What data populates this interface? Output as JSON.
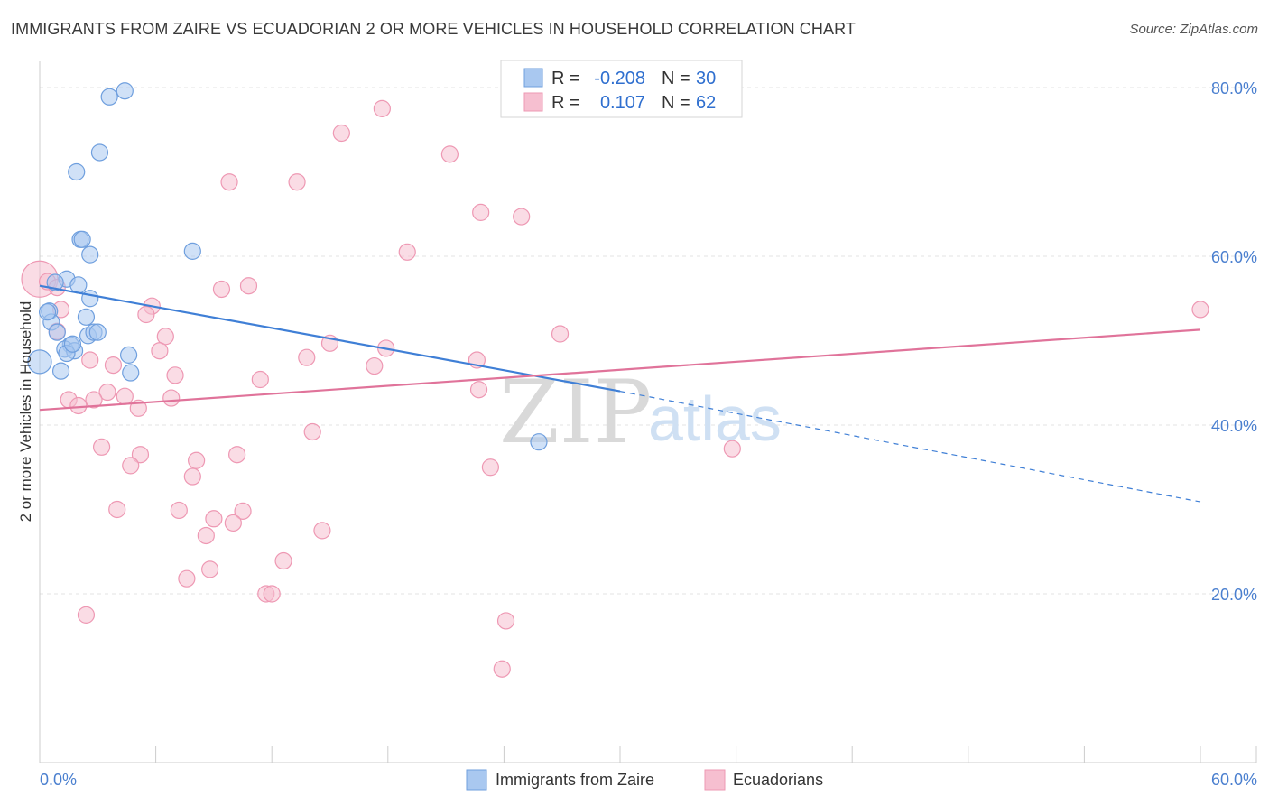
{
  "title": "IMMIGRANTS FROM ZAIRE VS ECUADORIAN 2 OR MORE VEHICLES IN HOUSEHOLD CORRELATION CHART",
  "source": "Source: ZipAtlas.com",
  "watermark": {
    "zip": "ZIP",
    "atlas": "atlas"
  },
  "stats": [
    {
      "r_label": "R =",
      "r_value": "-0.208",
      "n_label": "N =",
      "n_value": "30"
    },
    {
      "r_label": "R =",
      "r_value": "0.107",
      "n_label": "N =",
      "n_value": "62"
    }
  ],
  "colors": {
    "blue_fill": "#a9c8f0",
    "blue_stroke": "#6f9fde",
    "blue_line": "#3f7fd6",
    "pink_fill": "#f6bfd0",
    "pink_stroke": "#ee98b3",
    "pink_line": "#e0739a",
    "tick_color": "#4a7fcf",
    "grid": "#e3e3e3"
  },
  "chart_data": {
    "type": "scatter",
    "title": "IMMIGRANTS FROM ZAIRE VS ECUADORIAN 2 OR MORE VEHICLES IN HOUSEHOLD CORRELATION CHART",
    "xlabel": "",
    "ylabel": "2 or more Vehicles in Household",
    "xlim": [
      0,
      60
    ],
    "ylim": [
      0,
      82
    ],
    "x_ticks": [
      "0.0%",
      "60.0%"
    ],
    "y_ticks": [
      {
        "value": 20,
        "label": "20.0%"
      },
      {
        "value": 40,
        "label": "40.0%"
      },
      {
        "value": 60,
        "label": "60.0%"
      },
      {
        "value": 80,
        "label": "80.0%"
      }
    ],
    "grid": true,
    "legend_position": "bottom-center",
    "series": [
      {
        "name": "Immigrants from Zaire",
        "color": "#a9c8f0",
        "points": [
          [
            3.6,
            78.9
          ],
          [
            4.4,
            79.6
          ],
          [
            3.1,
            72.3
          ],
          [
            1.9,
            70.0
          ],
          [
            2.1,
            62.0
          ],
          [
            2.2,
            62.0
          ],
          [
            2.6,
            60.2
          ],
          [
            7.9,
            60.6
          ],
          [
            1.4,
            57.3
          ],
          [
            0.8,
            56.9
          ],
          [
            2.0,
            56.6
          ],
          [
            2.6,
            55.0
          ],
          [
            0.5,
            53.5
          ],
          [
            0.6,
            52.2
          ],
          [
            2.4,
            52.8
          ],
          [
            0.9,
            51.0
          ],
          [
            2.5,
            50.6
          ],
          [
            2.8,
            51.0
          ],
          [
            3.0,
            51.0
          ],
          [
            1.6,
            49.5
          ],
          [
            1.3,
            49.0
          ],
          [
            1.8,
            48.8
          ],
          [
            1.4,
            48.5
          ],
          [
            4.6,
            48.3
          ],
          [
            0.0,
            47.5
          ],
          [
            1.1,
            46.4
          ],
          [
            4.7,
            46.2
          ],
          [
            25.8,
            38.0
          ],
          [
            0.4,
            53.4
          ],
          [
            1.7,
            49.6
          ]
        ],
        "sizes": [
          9,
          9,
          9,
          9,
          9,
          9,
          9,
          9,
          9,
          9,
          9,
          9,
          9,
          9,
          9,
          9,
          9,
          9,
          9,
          9,
          9,
          9,
          9,
          9,
          13,
          9,
          9,
          9,
          9,
          9
        ],
        "trend": {
          "x0": 0,
          "y0": 56.5,
          "x1": 30,
          "y1": 44.0,
          "dash_to_x": 60,
          "dash_to_y": 30.9
        }
      },
      {
        "name": "Ecuadorians",
        "color": "#f6bfd0",
        "points": [
          [
            0.0,
            57.3
          ],
          [
            0.4,
            57.0
          ],
          [
            1.1,
            53.7
          ],
          [
            5.8,
            54.1
          ],
          [
            9.4,
            56.1
          ],
          [
            10.8,
            56.5
          ],
          [
            5.5,
            53.1
          ],
          [
            0.9,
            51.1
          ],
          [
            6.5,
            50.5
          ],
          [
            26.9,
            50.8
          ],
          [
            15.0,
            49.7
          ],
          [
            17.9,
            49.1
          ],
          [
            6.2,
            48.8
          ],
          [
            13.8,
            48.0
          ],
          [
            22.6,
            47.7
          ],
          [
            2.6,
            47.7
          ],
          [
            3.8,
            47.1
          ],
          [
            17.3,
            47.0
          ],
          [
            7.0,
            45.9
          ],
          [
            11.4,
            45.4
          ],
          [
            22.7,
            44.2
          ],
          [
            3.5,
            43.9
          ],
          [
            4.4,
            43.4
          ],
          [
            6.8,
            43.2
          ],
          [
            1.5,
            43.0
          ],
          [
            2.8,
            43.0
          ],
          [
            2.0,
            42.3
          ],
          [
            5.1,
            42.0
          ],
          [
            14.1,
            39.2
          ],
          [
            3.2,
            37.4
          ],
          [
            5.2,
            36.5
          ],
          [
            10.2,
            36.5
          ],
          [
            8.1,
            35.8
          ],
          [
            4.7,
            35.2
          ],
          [
            23.3,
            35.0
          ],
          [
            7.9,
            33.9
          ],
          [
            4.0,
            30.0
          ],
          [
            7.2,
            29.9
          ],
          [
            10.5,
            29.8
          ],
          [
            9.0,
            28.9
          ],
          [
            10.0,
            28.4
          ],
          [
            14.6,
            27.5
          ],
          [
            8.6,
            26.9
          ],
          [
            12.6,
            23.9
          ],
          [
            8.8,
            22.9
          ],
          [
            7.6,
            21.8
          ],
          [
            11.7,
            20.0
          ],
          [
            12.0,
            20.0
          ],
          [
            2.4,
            17.5
          ],
          [
            24.1,
            16.8
          ],
          [
            23.9,
            11.1
          ],
          [
            9.8,
            68.8
          ],
          [
            13.3,
            68.8
          ],
          [
            15.6,
            74.6
          ],
          [
            17.7,
            77.5
          ],
          [
            21.2,
            72.1
          ],
          [
            22.8,
            65.2
          ],
          [
            24.9,
            64.7
          ],
          [
            19.0,
            60.5
          ],
          [
            35.8,
            37.2
          ],
          [
            60.0,
            53.7
          ],
          [
            0.9,
            56.3
          ]
        ],
        "sizes": [
          20,
          9,
          9,
          9,
          9,
          9,
          9,
          9,
          9,
          9,
          9,
          9,
          9,
          9,
          9,
          9,
          9,
          9,
          9,
          9,
          9,
          9,
          9,
          9,
          9,
          9,
          9,
          9,
          9,
          9,
          9,
          9,
          9,
          9,
          9,
          9,
          9,
          9,
          9,
          9,
          9,
          9,
          9,
          9,
          9,
          9,
          9,
          9,
          9,
          9,
          9,
          9,
          9,
          9,
          9,
          9,
          9,
          9,
          9,
          9,
          9,
          9
        ],
        "trend": {
          "x0": 0,
          "y0": 41.8,
          "x1": 60,
          "y1": 51.3
        }
      }
    ]
  }
}
